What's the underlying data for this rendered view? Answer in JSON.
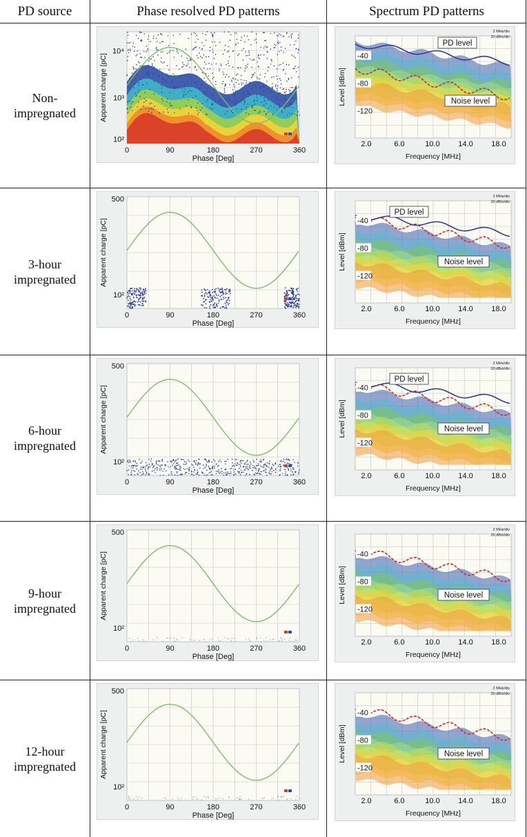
{
  "headers": [
    "PD source",
    "Phase resolved PD patterns",
    "Spectrum PD patterns"
  ],
  "rows": [
    {
      "source_lines": [
        "Non-",
        "impregnated"
      ],
      "prpd_scale": "log4",
      "pd_level": true,
      "dense": "high"
    },
    {
      "source_lines": [
        "3-hour",
        "impregnated"
      ],
      "prpd_scale": "500",
      "pd_level": true,
      "dense": "partial"
    },
    {
      "source_lines": [
        "6-hour",
        "impregnated"
      ],
      "prpd_scale": "500",
      "pd_level": true,
      "dense": "band"
    },
    {
      "source_lines": [
        "9-hour",
        "impregnated"
      ],
      "prpd_scale": "500",
      "pd_level": false,
      "dense": "none"
    },
    {
      "source_lines": [
        "12-hour",
        "impregnated"
      ],
      "prpd_scale": "500",
      "pd_level": false,
      "dense": "none"
    }
  ],
  "prpd": {
    "ylabel": "Apparent charge [pC]",
    "xlabel": "Phase [Deg]",
    "xticks": [
      "0",
      "90",
      "180",
      "270",
      "360"
    ],
    "yticks_log": [
      "10⁴",
      "10³",
      "10²"
    ],
    "yticks_500": [
      "500",
      "10²"
    ]
  },
  "spectrum": {
    "ylabel": "Level [dBm]",
    "xlabel": "Frequency [MHz]",
    "xticks": [
      "2.0",
      "6.0",
      "10.0",
      "14.0",
      "18.0"
    ],
    "yticks": [
      "-40",
      "-80",
      "-120"
    ],
    "pd_label": "PD level",
    "noise_label": "Noise level",
    "corner1": "2 MHz/div",
    "corner2": "20 dBm/div"
  },
  "colors": {
    "grid": "#b9c4c9",
    "sine": "#7cbf6a",
    "noise_curve": "#d8261e",
    "pd_curve": "#2f3f8f"
  }
}
